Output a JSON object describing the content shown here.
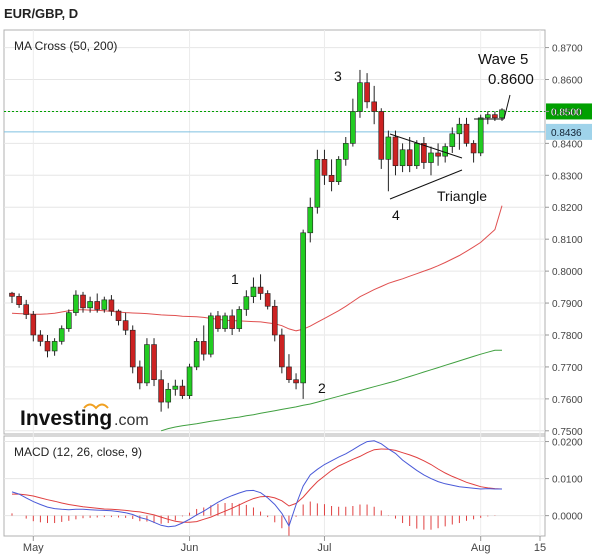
{
  "header": {
    "title": "EUR/GBP, D"
  },
  "main_panel": {
    "indicator_label": "MA Cross (50, 200)"
  },
  "macd_panel": {
    "indicator_label": "MACD (12, 26, close, 9)"
  },
  "logo": {
    "brand": "Investing",
    "suffix": ".com"
  },
  "annotations": {
    "wave5": "Wave 5",
    "wave5_price": "0.8600",
    "wave_1": "1",
    "wave_2": "2",
    "wave_3": "3",
    "wave_4": "4",
    "triangle": "Triangle"
  },
  "colors": {
    "up": "#22cc22",
    "down": "#cc2222",
    "ma50": "#e05050",
    "ma200": "#40a040",
    "macd_line": "#4a5ad8",
    "signal_line": "#e04040",
    "hist": "#e04040",
    "green_level": "#00a000",
    "blue_level": "#7fc0e0"
  },
  "chart_data": [
    {
      "type": "candlestick",
      "title": "EUR/GBP, D",
      "x_labels": [
        "May",
        "Jun",
        "Jul",
        "Aug",
        "15"
      ],
      "y_ticks": [
        "0.8700",
        "0.8600",
        "0.8500",
        "0.8400",
        "0.8300",
        "0.8200",
        "0.8100",
        "0.8000",
        "0.7900",
        "0.7800",
        "0.7700",
        "0.7600",
        "0.7500"
      ],
      "ylim": [
        0.749,
        0.8755
      ],
      "levels": [
        {
          "label": "0.8500",
          "value": 0.85,
          "style": "dotted-green"
        },
        {
          "label": "0.8436",
          "value": 0.8436,
          "style": "solid-blue"
        }
      ],
      "candles": [
        [
          0.7931,
          0.7935,
          0.79,
          0.7921
        ],
        [
          0.7921,
          0.793,
          0.7885,
          0.7895
        ],
        [
          0.7895,
          0.791,
          0.785,
          0.7864
        ],
        [
          0.7864,
          0.7875,
          0.778,
          0.78
        ],
        [
          0.78,
          0.7815,
          0.7765,
          0.778
        ],
        [
          0.778,
          0.78,
          0.773,
          0.775
        ],
        [
          0.775,
          0.779,
          0.7735,
          0.778
        ],
        [
          0.778,
          0.783,
          0.777,
          0.782
        ],
        [
          0.782,
          0.788,
          0.781,
          0.787
        ],
        [
          0.787,
          0.794,
          0.786,
          0.7925
        ],
        [
          0.7925,
          0.7935,
          0.787,
          0.7885
        ],
        [
          0.7885,
          0.792,
          0.787,
          0.7905
        ],
        [
          0.7905,
          0.793,
          0.787,
          0.788
        ],
        [
          0.788,
          0.792,
          0.787,
          0.791
        ],
        [
          0.791,
          0.7925,
          0.786,
          0.7875
        ],
        [
          0.7875,
          0.788,
          0.783,
          0.7845
        ],
        [
          0.7845,
          0.787,
          0.78,
          0.7815
        ],
        [
          0.7815,
          0.783,
          0.768,
          0.77
        ],
        [
          0.77,
          0.772,
          0.763,
          0.765
        ],
        [
          0.765,
          0.779,
          0.764,
          0.777
        ],
        [
          0.777,
          0.779,
          0.764,
          0.766
        ],
        [
          0.766,
          0.769,
          0.756,
          0.759
        ],
        [
          0.759,
          0.765,
          0.757,
          0.763
        ],
        [
          0.763,
          0.766,
          0.761,
          0.764
        ],
        [
          0.764,
          0.766,
          0.76,
          0.761
        ],
        [
          0.761,
          0.771,
          0.76,
          0.77
        ],
        [
          0.77,
          0.779,
          0.769,
          0.778
        ],
        [
          0.778,
          0.783,
          0.772,
          0.774
        ],
        [
          0.774,
          0.787,
          0.773,
          0.786
        ],
        [
          0.786,
          0.7875,
          0.781,
          0.782
        ],
        [
          0.782,
          0.787,
          0.781,
          0.786
        ],
        [
          0.786,
          0.788,
          0.78,
          0.782
        ],
        [
          0.782,
          0.789,
          0.781,
          0.788
        ],
        [
          0.788,
          0.794,
          0.786,
          0.792
        ],
        [
          0.792,
          0.798,
          0.79,
          0.795
        ],
        [
          0.795,
          0.799,
          0.791,
          0.793
        ],
        [
          0.793,
          0.794,
          0.788,
          0.789
        ],
        [
          0.789,
          0.791,
          0.778,
          0.78
        ],
        [
          0.78,
          0.782,
          0.768,
          0.77
        ],
        [
          0.77,
          0.774,
          0.765,
          0.766
        ],
        [
          0.766,
          0.768,
          0.763,
          0.765
        ],
        [
          0.765,
          0.813,
          0.76,
          0.812
        ],
        [
          0.812,
          0.823,
          0.809,
          0.82
        ],
        [
          0.82,
          0.838,
          0.818,
          0.835
        ],
        [
          0.835,
          0.838,
          0.827,
          0.83
        ],
        [
          0.83,
          0.835,
          0.825,
          0.828
        ],
        [
          0.828,
          0.836,
          0.827,
          0.835
        ],
        [
          0.835,
          0.842,
          0.833,
          0.84
        ],
        [
          0.84,
          0.854,
          0.839,
          0.85
        ],
        [
          0.85,
          0.863,
          0.848,
          0.859
        ],
        [
          0.859,
          0.862,
          0.851,
          0.853
        ],
        [
          0.853,
          0.858,
          0.846,
          0.85
        ],
        [
          0.85,
          0.851,
          0.832,
          0.835
        ],
        [
          0.835,
          0.844,
          0.825,
          0.842
        ],
        [
          0.842,
          0.844,
          0.83,
          0.833
        ],
        [
          0.833,
          0.84,
          0.831,
          0.838
        ],
        [
          0.838,
          0.842,
          0.831,
          0.833
        ],
        [
          0.833,
          0.841,
          0.832,
          0.84
        ],
        [
          0.84,
          0.842,
          0.832,
          0.834
        ],
        [
          0.834,
          0.839,
          0.83,
          0.837
        ],
        [
          0.837,
          0.84,
          0.833,
          0.836
        ],
        [
          0.836,
          0.84,
          0.834,
          0.839
        ],
        [
          0.839,
          0.845,
          0.837,
          0.843
        ],
        [
          0.843,
          0.848,
          0.838,
          0.846
        ],
        [
          0.846,
          0.848,
          0.839,
          0.84
        ],
        [
          0.84,
          0.841,
          0.834,
          0.837
        ],
        [
          0.837,
          0.849,
          0.836,
          0.848
        ],
        [
          0.848,
          0.85,
          0.846,
          0.849
        ],
        [
          0.849,
          0.85,
          0.847,
          0.848
        ],
        [
          0.848,
          0.851,
          0.847,
          0.8505
        ]
      ],
      "ma50": [
        0.7868,
        0.7867,
        0.7866,
        0.7865,
        0.7865,
        0.7866,
        0.7868,
        0.7872,
        0.7876,
        0.7879,
        0.7879,
        0.7878,
        0.7877,
        0.7876,
        0.7874,
        0.7872,
        0.787,
        0.7869,
        0.7868,
        0.7867,
        0.7865,
        0.7863,
        0.7862,
        0.7861,
        0.7859,
        0.7858,
        0.7857,
        0.7855,
        0.7852,
        0.7849,
        0.7846,
        0.7845,
        0.7844,
        0.7843,
        0.7842,
        0.7841,
        0.7838,
        0.7835,
        0.7829,
        0.7819,
        0.7813,
        0.7818,
        0.7828,
        0.784,
        0.7852,
        0.7864,
        0.7876,
        0.789,
        0.7905,
        0.792,
        0.7931,
        0.7942,
        0.7952,
        0.7962,
        0.7969,
        0.7976,
        0.7984,
        0.7992,
        0.8,
        0.8008,
        0.8017,
        0.8027,
        0.8038,
        0.8049,
        0.8062,
        0.8076,
        0.809,
        0.811,
        0.813,
        0.8205
      ],
      "ma200": [
        null,
        null,
        null,
        null,
        null,
        null,
        null,
        null,
        null,
        null,
        null,
        null,
        null,
        null,
        null,
        null,
        null,
        null,
        null,
        null,
        null,
        0.75,
        0.7507,
        0.7512,
        0.7516,
        0.7519,
        0.7522,
        0.7526,
        0.753,
        0.7533,
        0.7536,
        0.754,
        0.7543,
        0.7547,
        0.755,
        0.7555,
        0.7559,
        0.7563,
        0.7567,
        0.7571,
        0.7575,
        0.758,
        0.7584,
        0.759,
        0.7596,
        0.7602,
        0.7608,
        0.7614,
        0.762,
        0.7626,
        0.7632,
        0.7638,
        0.7644,
        0.765,
        0.7656,
        0.7663,
        0.767,
        0.7677,
        0.7684,
        0.7691,
        0.7698,
        0.7705,
        0.7712,
        0.7719,
        0.7726,
        0.7733,
        0.774,
        0.7746,
        0.7752,
        0.7752
      ]
    },
    {
      "type": "line",
      "title": "MACD (12, 26, close, 9)",
      "y_ticks": [
        "0.0200",
        "0.0100",
        "0.0000"
      ],
      "ylim": [
        -0.0055,
        0.0215
      ],
      "series": [
        {
          "name": "MACD",
          "values": [
            0.0064,
            0.0058,
            0.0048,
            0.0038,
            0.003,
            0.0023,
            0.0019,
            0.0017,
            0.0016,
            0.0017,
            0.0017,
            0.0016,
            0.0015,
            0.0014,
            0.0013,
            0.0011,
            0.0008,
            0.0003,
            -0.0005,
            -0.001,
            -0.0018,
            -0.0026,
            -0.003,
            -0.0028,
            -0.002,
            -0.001,
            0.0002,
            0.0012,
            0.0024,
            0.0036,
            0.0046,
            0.0054,
            0.0061,
            0.0067,
            0.0068,
            0.0062,
            0.0048,
            0.003,
            0.0006,
            -0.0028,
            0.003,
            0.008,
            0.011,
            0.0125,
            0.0138,
            0.0148,
            0.0158,
            0.0167,
            0.0178,
            0.019,
            0.02,
            0.0202,
            0.0194,
            0.018,
            0.0168,
            0.015,
            0.0136,
            0.0122,
            0.011,
            0.01,
            0.0092,
            0.0086,
            0.0082,
            0.0078,
            0.0076,
            0.0074,
            0.0072,
            0.0073,
            0.0072,
            0.0072
          ]
        },
        {
          "name": "Signal",
          "values": [
            0.0058,
            0.0058,
            0.0056,
            0.0053,
            0.0048,
            0.0043,
            0.0039,
            0.0034,
            0.003,
            0.0027,
            0.0024,
            0.0022,
            0.002,
            0.0018,
            0.0017,
            0.0016,
            0.0014,
            0.0012,
            0.001,
            0.0006,
            0.0002,
            -0.0004,
            -0.001,
            -0.0015,
            -0.0018,
            -0.0018,
            -0.0016,
            -0.001,
            -0.0004,
            0.0004,
            0.0012,
            0.002,
            0.0029,
            0.0038,
            0.0046,
            0.0051,
            0.0052,
            0.0048,
            0.004,
            0.0026,
            0.0033,
            0.005,
            0.0072,
            0.0092,
            0.0107,
            0.0122,
            0.0134,
            0.0143,
            0.0152,
            0.016,
            0.017,
            0.0178,
            0.018,
            0.0179,
            0.0176,
            0.017,
            0.0164,
            0.0157,
            0.0148,
            0.0138,
            0.0126,
            0.0115,
            0.0106,
            0.0098,
            0.009,
            0.0084,
            0.0078,
            0.0075,
            0.0073,
            0.0072
          ]
        },
        {
          "name": "Histogram",
          "values": [
            0.0006,
            0.0,
            -0.0008,
            -0.0015,
            -0.0018,
            -0.002,
            -0.002,
            -0.0017,
            -0.0014,
            -0.001,
            -0.0007,
            -0.0006,
            -0.0005,
            -0.0004,
            -0.0004,
            -0.0005,
            -0.0006,
            -0.0009,
            -0.0015,
            -0.0016,
            -0.002,
            -0.0022,
            -0.002,
            -0.0013,
            -0.0002,
            0.0008,
            0.0018,
            0.0022,
            0.0028,
            0.0032,
            0.0034,
            0.0034,
            0.0032,
            0.0029,
            0.0022,
            0.0011,
            -0.0004,
            -0.0018,
            -0.0034,
            -0.0054,
            -0.0003,
            0.003,
            0.0038,
            0.0033,
            0.0031,
            0.0026,
            0.0024,
            0.0024,
            0.0026,
            0.003,
            0.003,
            0.0024,
            0.0014,
            0.0001,
            -0.0008,
            -0.002,
            -0.0028,
            -0.0035,
            -0.0038,
            -0.0038,
            -0.0034,
            -0.0029,
            -0.0024,
            -0.002,
            -0.0014,
            -0.001,
            -0.0006,
            -0.0002,
            -0.0001,
            0.0
          ]
        }
      ]
    }
  ]
}
